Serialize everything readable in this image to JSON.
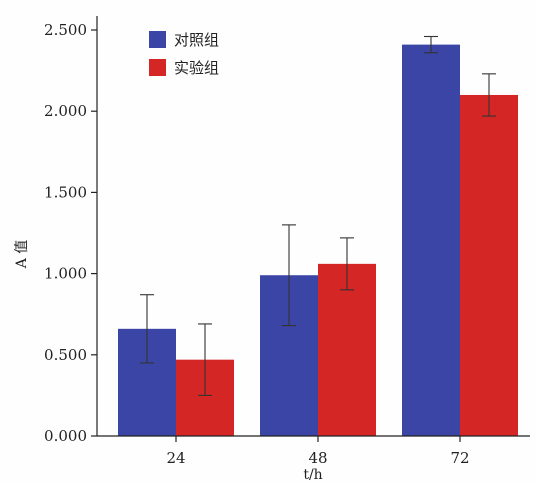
{
  "chart_data": {
    "type": "bar",
    "categories": [
      "24",
      "48",
      "72"
    ],
    "series": [
      {
        "name": "对照组",
        "color": "#3a45a6",
        "values": [
          0.66,
          0.99,
          2.41
        ],
        "errors": [
          0.21,
          0.31,
          0.05
        ]
      },
      {
        "name": "实验组",
        "color": "#d42624",
        "values": [
          0.47,
          1.06,
          2.1
        ],
        "errors": [
          0.22,
          0.16,
          0.13
        ]
      }
    ],
    "xlabel": "t/h",
    "ylabel": "A 值",
    "ylim": [
      0,
      2.5
    ],
    "yticks": [
      "0.000",
      "0.500",
      "1.000",
      "1.500",
      "2.000",
      "2.500"
    ],
    "legend_position": "top-left",
    "grid": false
  }
}
